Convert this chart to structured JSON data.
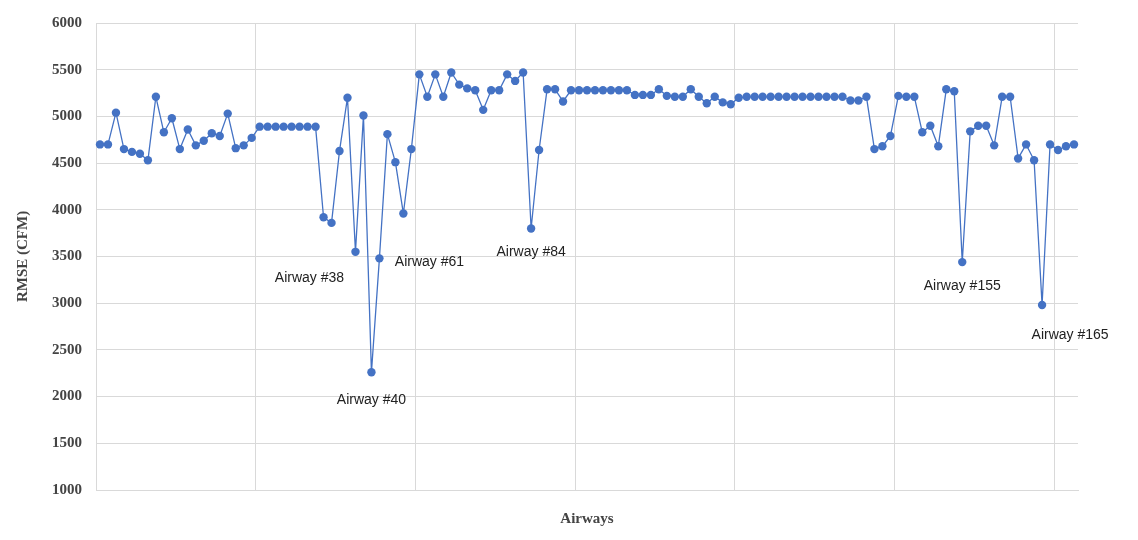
{
  "chart_data": {
    "type": "line",
    "xlabel": "Airways",
    "ylabel": "RMSE (CFM)",
    "categories": [
      null,
      null,
      null,
      null,
      null,
      null,
      null,
      null,
      null,
      null,
      null,
      null,
      null,
      null,
      null,
      null,
      null,
      null,
      null,
      null,
      null,
      null,
      null,
      null,
      null,
      null,
      null,
      null,
      null,
      null,
      null,
      null,
      null,
      null,
      null,
      null,
      null,
      null,
      null,
      null,
      null,
      null,
      null,
      null,
      null,
      null,
      null,
      null,
      null,
      null,
      null,
      null,
      null,
      null,
      null,
      null,
      null,
      null,
      null,
      null,
      null,
      null,
      null,
      null,
      null,
      null,
      null,
      null,
      null,
      null,
      null,
      null,
      null,
      null,
      null,
      null,
      null,
      null,
      null,
      null,
      null,
      null,
      null,
      null,
      null,
      null,
      null,
      null,
      null,
      null,
      null,
      null,
      null,
      null,
      null,
      null,
      null,
      null,
      null,
      null,
      null,
      null,
      null,
      null,
      null,
      null,
      null,
      null,
      null,
      null,
      null,
      null,
      null,
      null,
      null,
      null,
      null,
      null,
      null,
      null,
      null,
      null,
      null
    ],
    "series": [
      {
        "color": "#4472c4",
        "values": [
          4700,
          4700,
          5040,
          4650,
          4620,
          4600,
          4530,
          5210,
          4830,
          4980,
          4650,
          4860,
          4690,
          4740,
          4820,
          4790,
          5030,
          4660,
          4690,
          4770,
          4890,
          4890,
          4890,
          4890,
          4890,
          4890,
          4890,
          4890,
          3920,
          3860,
          4630,
          5200,
          3550,
          5010,
          2260,
          3480,
          4810,
          4510,
          3960,
          4650,
          5450,
          5210,
          5450,
          5210,
          5470,
          5340,
          5300,
          5280,
          5070,
          5280,
          5280,
          5450,
          5380,
          5470,
          3800,
          4640,
          5290,
          5290,
          5160,
          5280,
          5280,
          5280,
          5280,
          5280,
          5280,
          5280,
          5280,
          5230,
          5230,
          5230,
          5290,
          5220,
          5210,
          5210,
          5290,
          5210,
          5140,
          5210,
          5150,
          5130,
          5200,
          5210,
          5210,
          5210,
          5210,
          5210,
          5210,
          5210,
          5210,
          5210,
          5210,
          5210,
          5210,
          5210,
          5170,
          5170,
          5210,
          4650,
          4680,
          4790,
          5220,
          5210,
          5210,
          4830,
          4900,
          4680,
          5290,
          5270,
          3440,
          4840,
          4900,
          4900,
          4690,
          5210,
          5210,
          4550,
          4700,
          4530,
          2980,
          4700,
          4640,
          4680,
          4700
        ]
      }
    ],
    "ylim": [
      1000,
      6000
    ],
    "yticks": [
      1000,
      1500,
      2000,
      2500,
      3000,
      3500,
      4000,
      4500,
      5000,
      5500,
      6000
    ],
    "grid": true,
    "marker": "circle",
    "tick_labels": "y",
    "annotations": [
      "Airway #38",
      "Airway #40",
      "Airway #61",
      "Airway #84",
      "Airway #155",
      "Airway #165"
    ]
  }
}
